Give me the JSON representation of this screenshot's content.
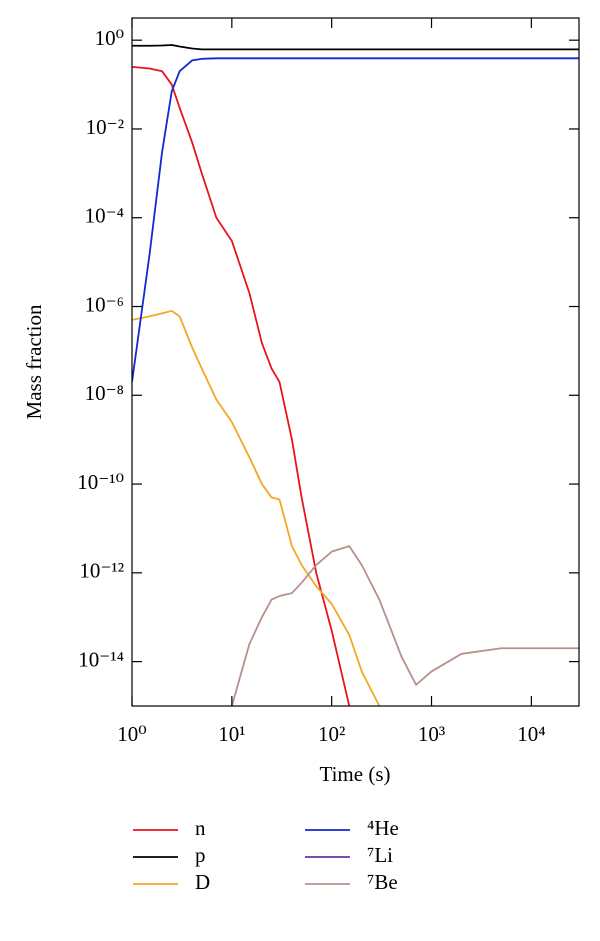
{
  "chart_data": {
    "type": "line",
    "xlabel": "Time (s)",
    "ylabel": "Mass fraction",
    "x": [
      1,
      1.5,
      2,
      2.5,
      3,
      4,
      5,
      7,
      10,
      15,
      20,
      25,
      30,
      40,
      50,
      70,
      100,
      150,
      200,
      300,
      500,
      700,
      1000,
      2000,
      5000,
      10000,
      30000
    ],
    "xscale": "log",
    "yscale": "log",
    "xlim": [
      1,
      30000
    ],
    "ylim": [
      1e-15,
      3.16
    ],
    "xticks": [
      {
        "value": 1,
        "label": "10⁰"
      },
      {
        "value": 10,
        "label": "10¹"
      },
      {
        "value": 100,
        "label": "10²"
      },
      {
        "value": 1000,
        "label": "10³"
      },
      {
        "value": 10000,
        "label": "10⁴"
      }
    ],
    "yticks": [
      {
        "value": 1,
        "label": "10⁰"
      },
      {
        "value": 0.01,
        "label": "10⁻²"
      },
      {
        "value": 0.0001,
        "label": "10⁻⁴"
      },
      {
        "value": 1e-06,
        "label": "10⁻⁶"
      },
      {
        "value": 1e-08,
        "label": "10⁻⁸"
      },
      {
        "value": 1e-10,
        "label": "10⁻¹⁰"
      },
      {
        "value": 1e-12,
        "label": "10⁻¹²"
      },
      {
        "value": 1e-14,
        "label": "10⁻¹⁴"
      }
    ],
    "series": [
      {
        "name": "n",
        "color": "#e8141c",
        "values": [
          0.25,
          0.23,
          0.2,
          0.1,
          0.03,
          0.005,
          0.001,
          0.0001,
          3e-05,
          2e-06,
          1.5e-07,
          4e-08,
          2e-08,
          1e-09,
          5e-11,
          1e-12,
          5e-14,
          1e-15,
          null,
          null,
          null,
          null,
          null,
          null,
          null,
          null,
          null
        ]
      },
      {
        "name": "p",
        "color": "#000000",
        "values": [
          0.75,
          0.75,
          0.76,
          0.78,
          0.72,
          0.65,
          0.62,
          0.62,
          0.62,
          0.62,
          0.62,
          0.62,
          0.62,
          0.62,
          0.62,
          0.62,
          0.62,
          0.62,
          0.62,
          0.62,
          0.62,
          0.62,
          0.62,
          0.62,
          0.62,
          0.62,
          0.62
        ]
      },
      {
        "name": "D",
        "color": "#f5a623",
        "values": [
          5e-07,
          6e-07,
          7e-07,
          8e-07,
          6e-07,
          1.2e-07,
          4e-08,
          8e-09,
          2.5e-09,
          4e-10,
          1e-10,
          5e-11,
          4.5e-11,
          4e-12,
          1.5e-12,
          5e-13,
          2e-13,
          4e-14,
          6e-15,
          1e-15,
          null,
          null,
          null,
          null,
          null,
          null,
          null
        ]
      },
      {
        "name": "⁴He",
        "color": "#1228d0",
        "values": [
          2e-08,
          1.5e-05,
          0.003,
          0.07,
          0.2,
          0.35,
          0.38,
          0.39,
          0.39,
          0.39,
          0.39,
          0.39,
          0.39,
          0.39,
          0.39,
          0.39,
          0.39,
          0.39,
          0.39,
          0.39,
          0.39,
          0.39,
          0.39,
          0.39,
          0.39,
          0.39,
          0.39
        ]
      },
      {
        "name": "⁷Li",
        "color": "#7030a0",
        "values": [
          null,
          null,
          null,
          null,
          null,
          null,
          null,
          null,
          null,
          null,
          null,
          null,
          null,
          null,
          null,
          null,
          null,
          null,
          null,
          null,
          null,
          null,
          null,
          null,
          null,
          null,
          null
        ]
      },
      {
        "name": "⁷Be",
        "color": "#b8908c",
        "values": [
          null,
          null,
          null,
          null,
          null,
          null,
          null,
          null,
          1e-15,
          2.5e-14,
          1e-13,
          2.5e-13,
          3e-13,
          3.5e-13,
          6e-13,
          1.5e-12,
          3e-12,
          4e-12,
          1.5e-12,
          2.5e-13,
          1.3e-14,
          3e-15,
          6e-15,
          1.5e-14,
          2e-14,
          2e-14,
          2e-14
        ]
      }
    ]
  }
}
